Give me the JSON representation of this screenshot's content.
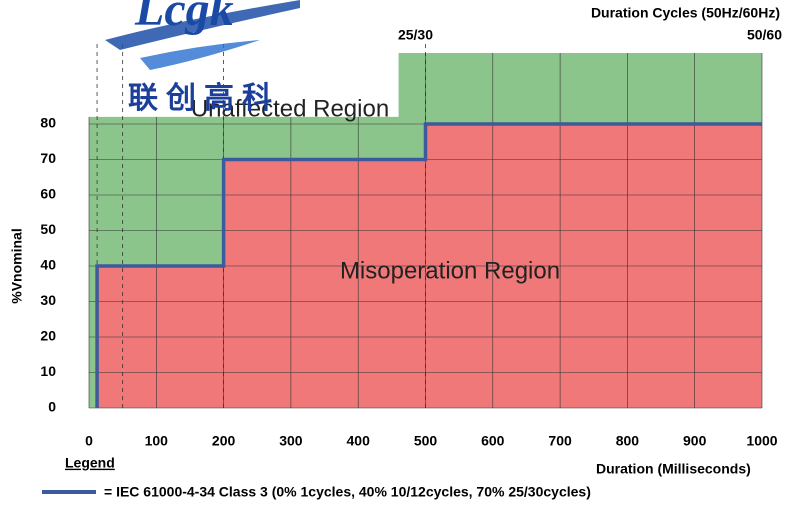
{
  "chart_data": {
    "type": "step",
    "logo": {
      "brand": "Lcgk",
      "subtitle": "联创高科"
    },
    "top_axis_label": "Duration Cycles (50Hz/60Hz)",
    "cycle_markers": [
      {
        "value": 500,
        "label": "25/30"
      },
      {
        "value": 1000,
        "label": "50/60"
      }
    ],
    "x_label": "Duration (Milliseconds)",
    "y_label": "%Vnominal",
    "xlim": [
      0,
      1000
    ],
    "ylim": [
      0,
      100
    ],
    "xticks": [
      0,
      100,
      200,
      300,
      400,
      500,
      600,
      700,
      800,
      900,
      1000
    ],
    "yticks": [
      0,
      10,
      20,
      30,
      40,
      50,
      60,
      70,
      80
    ],
    "dashed_x": [
      12,
      50,
      200,
      500
    ],
    "regions": [
      {
        "name": "Unaffected Region",
        "color": "#8cc58c",
        "x": [
          0,
          460,
          460,
          1000
        ],
        "values": [
          82,
          82,
          100,
          100
        ]
      },
      {
        "name": "Misoperation Region",
        "color": "#f07878"
      }
    ],
    "series": [
      {
        "name": "= IEC 61000-4-34 Class 3 (0% 1cycles, 40% 10/12cycles, 70% 25/30cycles)",
        "color": "#3d5a9c",
        "x": [
          12,
          12,
          200,
          200,
          500,
          500,
          1000
        ],
        "values": [
          0,
          40,
          40,
          70,
          70,
          80,
          80
        ]
      }
    ],
    "legend_title": "Legend"
  }
}
